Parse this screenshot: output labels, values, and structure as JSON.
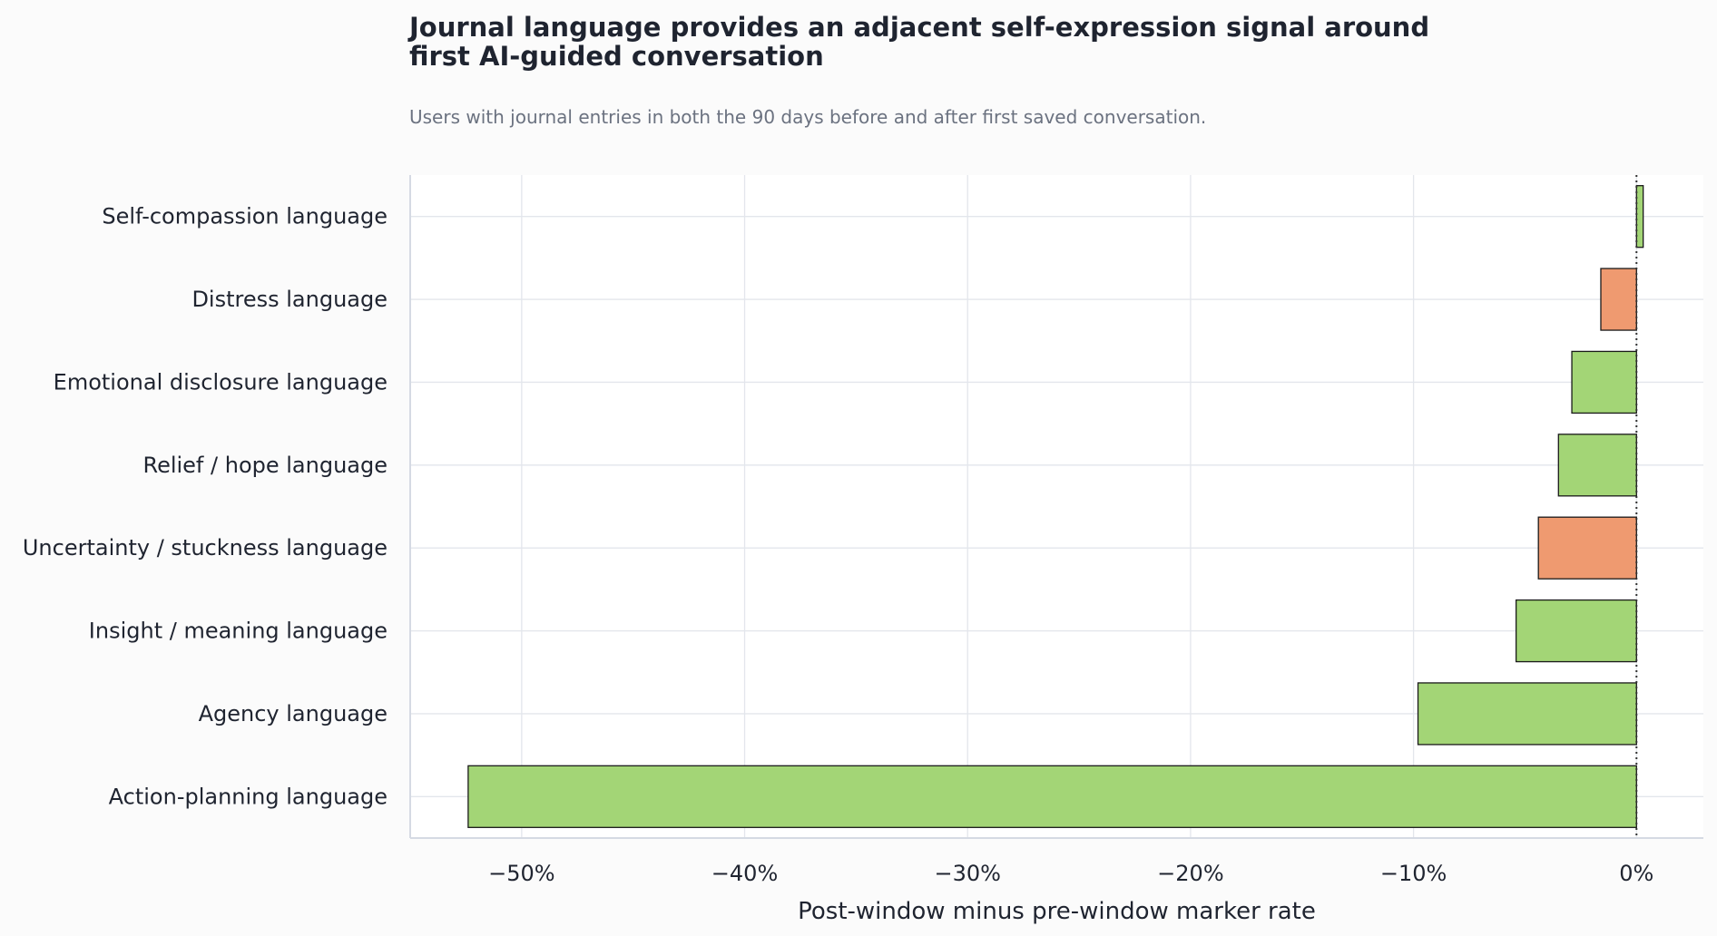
{
  "chart_data": {
    "type": "bar",
    "orientation": "horizontal",
    "title": "Journal language provides an adjacent self-expression signal around first AI-guided conversation",
    "subtitle": "Users with journal entries in both the 90 days before and after first saved conversation.",
    "xlabel": "Post-window minus pre-window marker rate",
    "ylabel": "",
    "xlim": [
      -55,
      3
    ],
    "x_ticks": [
      -50,
      -40,
      -30,
      -20,
      -10,
      0
    ],
    "x_tick_labels": [
      "−50%",
      "−40%",
      "−30%",
      "−20%",
      "−10%",
      "0%"
    ],
    "categories": [
      "Self-compassion language",
      "Distress language",
      "Emotional disclosure language",
      "Relief / hope language",
      "Uncertainty / stuckness language",
      "Insight / meaning language",
      "Agency language",
      "Action-planning language"
    ],
    "values": [
      0.3,
      -1.6,
      -2.9,
      -3.5,
      -4.4,
      -5.4,
      -9.8,
      -52.4
    ],
    "bar_colors": [
      "#a3d576",
      "#ef9a70",
      "#a3d576",
      "#a3d576",
      "#ef9a70",
      "#a3d576",
      "#a3d576",
      "#a3d576"
    ],
    "grid": true,
    "reference_line": 0,
    "legend": "none"
  }
}
